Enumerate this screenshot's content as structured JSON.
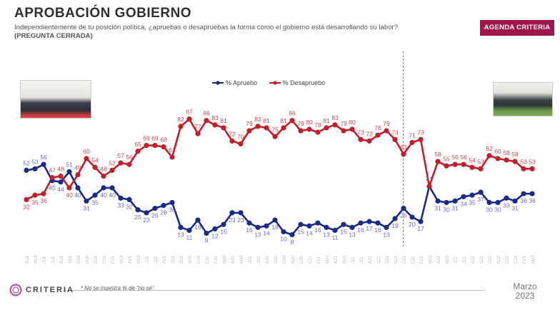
{
  "header": {
    "title": "APROBACIÓN GOBIERNO",
    "subtitle": "Independientemente de tu posición política, ¿apruebas o desapruebas la forma como el gobierno está desarrollando su labor?",
    "subtitle_note": "(PREGUNTA CERRADA)",
    "badge": "AGENDA CRITERIA"
  },
  "legend": {
    "approve": "% Apruebo",
    "disapprove": "% Desapruebo"
  },
  "footer": {
    "logo": "CRITERIA",
    "footnote": "* No se muestra % de \"no sé\"",
    "date_month": "Marzo",
    "date_year": "2023"
  },
  "colors": {
    "approve": "#1a2a8c",
    "disapprove": "#c41e2a",
    "badge": "#a0164b",
    "divider": "#888888"
  },
  "icons": {
    "photo_left": "government-group-photo",
    "photo_right": "government-group-photo-garden",
    "logo": "criteria-logo-icon"
  },
  "chart_data": {
    "type": "line",
    "title": "Aprobación gobierno",
    "ylim": [
      0,
      100
    ],
    "grid": false,
    "break_after_index": 41,
    "categories": [
      "A18",
      "M18",
      "J18",
      "J18",
      "A18",
      "S18",
      "O18",
      "N18",
      "D18",
      "E19",
      "F19",
      "M19",
      "A19",
      "M19",
      "J19",
      "J19",
      "A19",
      "S19",
      "O19",
      "N19",
      "D19",
      "E20",
      "F20",
      "M20",
      "A20",
      "M20",
      "J20",
      "J20",
      "A20",
      "S20",
      "O20",
      "N20",
      "D20",
      "E21",
      "F21",
      "M21",
      "A21",
      "M21",
      "J21",
      "J21",
      "A21",
      "S21",
      "O21",
      "N21",
      "D21",
      "E22",
      "F22",
      "M22",
      "A22",
      "M22",
      "J22",
      "J22",
      "A22",
      "S22",
      "O22",
      "N22",
      "D22",
      "E23",
      "F23",
      "M23"
    ],
    "series": [
      {
        "name": "% Apruebo",
        "values": [
          52,
          53,
          56,
          45,
          44,
          51,
          40,
          31,
          35,
          40,
          40,
          33,
          32,
          25,
          23,
          26,
          28,
          30,
          13,
          11,
          18,
          9,
          12,
          15,
          23,
          23,
          16,
          13,
          14,
          18,
          10,
          8,
          15,
          14,
          16,
          13,
          11,
          15,
          13,
          16,
          17,
          16,
          13,
          19,
          26,
          20,
          17,
          41,
          31,
          30,
          31,
          34,
          35,
          37,
          30,
          30,
          33,
          31,
          36,
          36
        ]
      },
      {
        "name": "% Desapruebo",
        "values": [
          32,
          35,
          36,
          47,
          48,
          40,
          49,
          60,
          54,
          48,
          52,
          57,
          56,
          65,
          69,
          69,
          68,
          61,
          82,
          87,
          77,
          86,
          83,
          81,
          72,
          70,
          79,
          82,
          81,
          75,
          81,
          86,
          79,
          80,
          78,
          81,
          83,
          79,
          80,
          73,
          72,
          76,
          79,
          73,
          63,
          71,
          73,
          41,
          58,
          55,
          56,
          56,
          54,
          53,
          62,
          60,
          59,
          58,
          53,
          53
        ]
      }
    ]
  }
}
